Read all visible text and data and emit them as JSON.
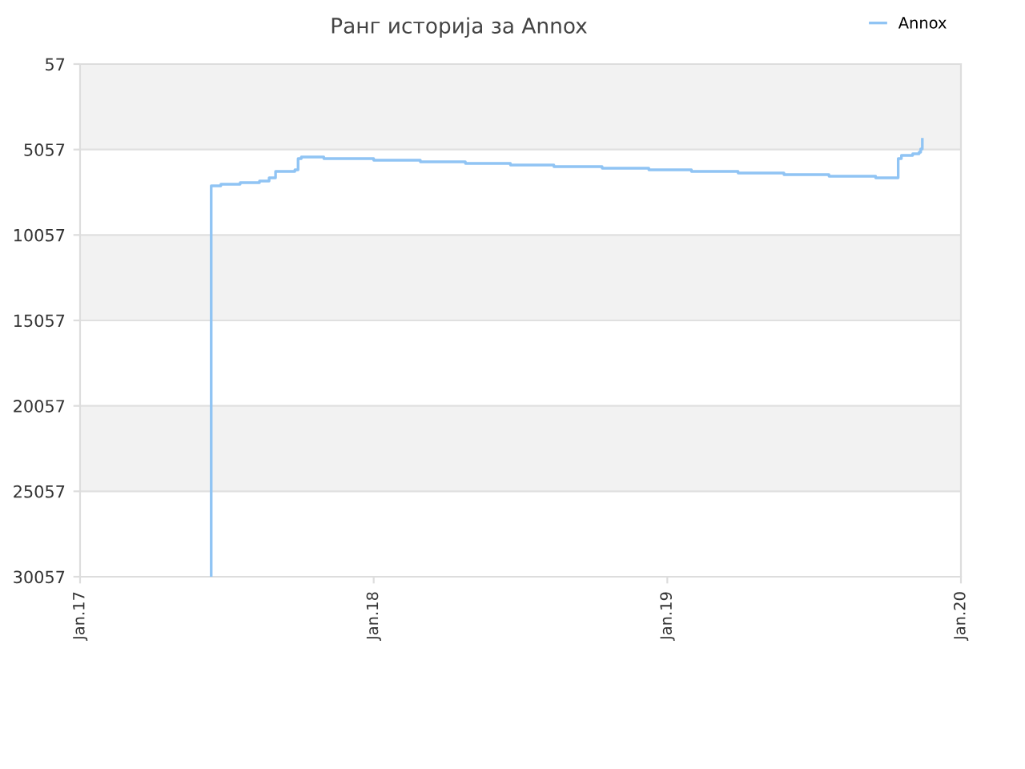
{
  "chart_data": {
    "type": "step",
    "title": "Ранг историја за Annox",
    "x": [
      "2017-06-13",
      "2017-06-13",
      "2017-06-25",
      "2017-07-19",
      "2017-08-12",
      "2017-08-24",
      "2017-09-01",
      "2017-09-25",
      "2017-09-29",
      "2017-10-03",
      "2017-10-31",
      "2018-01-01",
      "2018-02-28",
      "2018-04-25",
      "2018-06-20",
      "2018-08-13",
      "2018-10-12",
      "2018-12-09",
      "2019-01-31",
      "2019-03-30",
      "2019-05-26",
      "2019-07-21",
      "2019-09-17",
      "2019-10-15",
      "2019-10-19",
      "2019-11-02",
      "2019-11-10",
      "2019-11-12",
      "2019-11-14"
    ],
    "series": [
      {
        "name": "Annox",
        "color": "#90c4f4",
        "values": [
          30057,
          7182,
          7089,
          6994,
          6900,
          6713,
          6338,
          6244,
          5588,
          5494,
          5588,
          5682,
          5775,
          5869,
          5963,
          6057,
          6150,
          6244,
          6338,
          6432,
          6525,
          6619,
          6713,
          5588,
          5400,
          5307,
          5213,
          5025,
          4463
        ]
      }
    ],
    "xlim": [
      "2017-01-01",
      "2020-01-01"
    ],
    "xticks": [
      {
        "value": "2017-01-01",
        "label": "Jan.17"
      },
      {
        "value": "2018-01-01",
        "label": "Jan.18"
      },
      {
        "value": "2019-01-01",
        "label": "Jan.19"
      },
      {
        "value": "2020-01-01",
        "label": "Jan.20"
      }
    ],
    "ylim": [
      30057,
      57
    ],
    "yticks": [
      57,
      5057,
      10057,
      15057,
      20057,
      25057,
      30057
    ],
    "bands": [
      {
        "axis": "y",
        "from": 57,
        "to": 5057,
        "color": "#f2f2f2"
      },
      {
        "axis": "y",
        "from": 10057,
        "to": 15057,
        "color": "#f2f2f2"
      },
      {
        "axis": "y",
        "from": 20057,
        "to": 25057,
        "color": "#f2f2f2"
      }
    ],
    "grid": "y",
    "legend": "top right",
    "line_style": "solid",
    "marker": "none"
  }
}
